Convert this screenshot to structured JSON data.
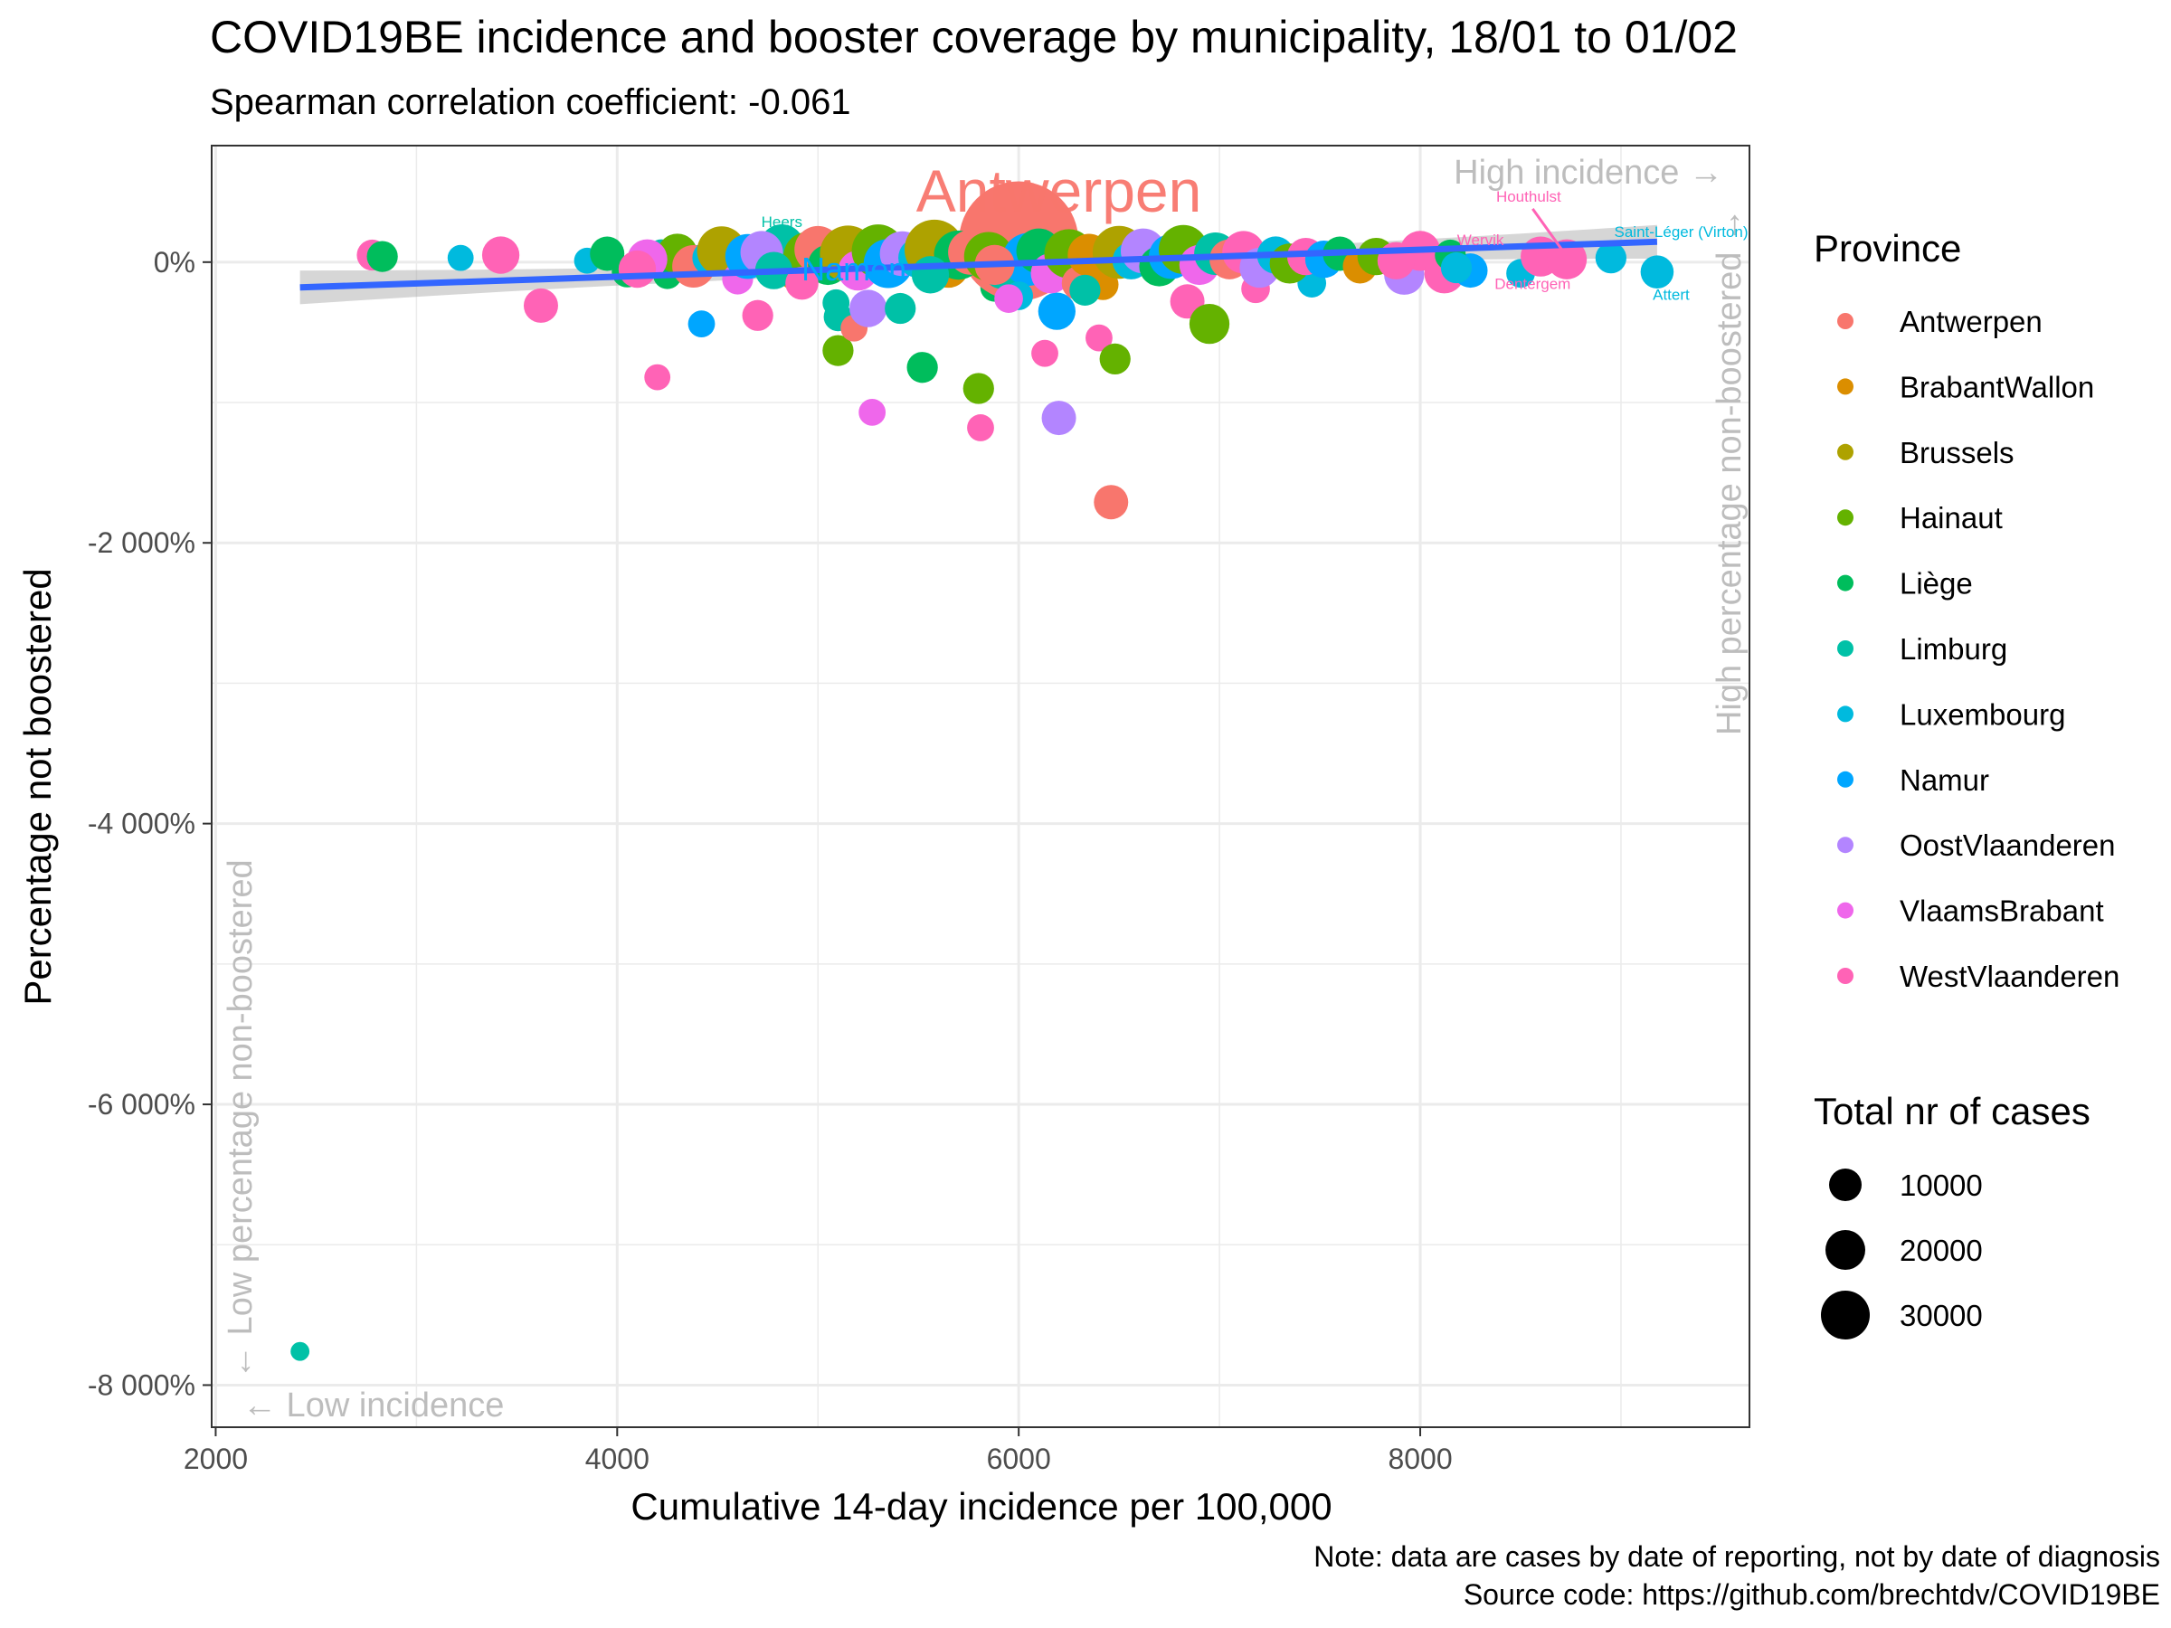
{
  "title": "COVID19BE incidence and booster coverage by municipality, 18/01 to 01/02",
  "subtitle": "Spearman correlation coefficient: -0.061",
  "caption": {
    "line1": "Note: data are cases by date of reporting, not by date of diagnosis",
    "line2": "Source code: https://github.com/brechtdv/COVID19BE"
  },
  "annotations": {
    "high_incidence": "High incidence →",
    "low_incidence": "← Low incidence",
    "high_nonboost": "High percentage non-boostered →",
    "low_nonboost": "← Low percentage non-boostered"
  },
  "colors": {
    "Antwerpen": "#F8766D",
    "BrabantWallon": "#DB8E00",
    "Brussels": "#AEA200",
    "Hainaut": "#64B200",
    "Liège": "#00BD5C",
    "Limburg": "#00C1A7",
    "Luxembourg": "#00BADE",
    "Namur": "#00A6FF",
    "OostVlaanderen": "#B385FF",
    "VlaamsBrabant": "#EF67EB",
    "WestVlaanderen": "#FF63B6",
    "trend": "#3366FF"
  },
  "chart_data": {
    "type": "scatter",
    "xlabel": "Cumulative 14-day incidence per 100,000",
    "ylabel": "Percentage not boostered",
    "xlim": [
      1980,
      9640
    ],
    "ylim": [
      -8300,
      830
    ],
    "x_ticks": [
      2000,
      4000,
      6000,
      8000
    ],
    "y_ticks": [
      {
        "value": 0,
        "label": "0%"
      },
      {
        "value": -2000,
        "label": "-2 000%"
      },
      {
        "value": -4000,
        "label": "-4 000%"
      },
      {
        "value": -6000,
        "label": "-6 000%"
      },
      {
        "value": -8000,
        "label": "-8 000%"
      }
    ],
    "grid": true,
    "legend_position": "right",
    "legend": {
      "color_title": "Province",
      "size_title": "Total nr of cases",
      "provinces": [
        "Antwerpen",
        "BrabantWallon",
        "Brussels",
        "Hainaut",
        "Liège",
        "Limburg",
        "Luxembourg",
        "Namur",
        "OostVlaanderen",
        "VlaamsBrabant",
        "WestVlaanderen"
      ],
      "size_breaks": [
        10000,
        20000,
        30000
      ]
    },
    "trend_line": {
      "x1": 2420,
      "y1": -180,
      "x2": 9180,
      "y2": 145
    },
    "labels": [
      {
        "text": "Antwerpen",
        "x": 6200,
        "y": 360,
        "province": "Antwerpen",
        "size": "large"
      },
      {
        "text": "Namen",
        "x": 5180,
        "y": -130,
        "province": "Namur",
        "size": "medium"
      },
      {
        "text": "Heers",
        "x": 4820,
        "y": 250,
        "province": "Limburg",
        "size": "small"
      },
      {
        "text": "Houthulst",
        "x": 8540,
        "y": 430,
        "province": "WestVlaanderen",
        "size": "small"
      },
      {
        "text": "Wervik",
        "x": 8300,
        "y": 120,
        "province": "WestVlaanderen",
        "size": "small"
      },
      {
        "text": "Dentergem",
        "x": 8560,
        "y": -190,
        "province": "WestVlaanderen",
        "size": "small"
      },
      {
        "text": "Saint-Léger (Virton)",
        "x": 9300,
        "y": 180,
        "province": "Luxembourg",
        "size": "small"
      },
      {
        "text": "Attert",
        "x": 9250,
        "y": -270,
        "province": "Luxembourg",
        "size": "small"
      }
    ],
    "points": [
      {
        "x": 2420,
        "y": -7760,
        "province": "Limburg",
        "cases": 300
      },
      {
        "x": 2780,
        "y": 50,
        "province": "WestVlaanderen",
        "cases": 1500
      },
      {
        "x": 2830,
        "y": 40,
        "province": "Liège",
        "cases": 1500
      },
      {
        "x": 3220,
        "y": 30,
        "province": "Luxembourg",
        "cases": 900
      },
      {
        "x": 3420,
        "y": 50,
        "province": "WestVlaanderen",
        "cases": 2500
      },
      {
        "x": 3620,
        "y": -310,
        "province": "WestVlaanderen",
        "cases": 2000
      },
      {
        "x": 3850,
        "y": 10,
        "province": "Luxembourg",
        "cases": 900
      },
      {
        "x": 3950,
        "y": 60,
        "province": "Liège",
        "cases": 2000
      },
      {
        "x": 4050,
        "y": -70,
        "province": "Liège",
        "cases": 1500
      },
      {
        "x": 4200,
        "y": -820,
        "province": "WestVlaanderen",
        "cases": 900
      },
      {
        "x": 4220,
        "y": 60,
        "province": "Limburg",
        "cases": 1200
      },
      {
        "x": 4250,
        "y": -90,
        "province": "Liège",
        "cases": 1200
      },
      {
        "x": 4400,
        "y": 20,
        "province": "Luxembourg",
        "cases": 1200
      },
      {
        "x": 4420,
        "y": -440,
        "province": "Namur",
        "cases": 1000
      },
      {
        "x": 4700,
        "y": -380,
        "province": "WestVlaanderen",
        "cases": 1500
      },
      {
        "x": 4820,
        "y": 110,
        "province": "Limburg",
        "cases": 4000
      },
      {
        "x": 5090,
        "y": -290,
        "province": "Limburg",
        "cases": 1000
      },
      {
        "x": 5100,
        "y": -390,
        "province": "Limburg",
        "cases": 1200
      },
      {
        "x": 5100,
        "y": -630,
        "province": "Hainaut",
        "cases": 1500
      },
      {
        "x": 5180,
        "y": -470,
        "province": "Antwerpen",
        "cases": 1000
      },
      {
        "x": 5250,
        "y": -330,
        "province": "OostVlaanderen",
        "cases": 2500
      },
      {
        "x": 5270,
        "y": -1070,
        "province": "VlaamsBrabant",
        "cases": 1000
      },
      {
        "x": 5410,
        "y": -330,
        "province": "Limburg",
        "cases": 1500
      },
      {
        "x": 5520,
        "y": -750,
        "province": "Liège",
        "cases": 1500
      },
      {
        "x": 5800,
        "y": -900,
        "province": "Hainaut",
        "cases": 1500
      },
      {
        "x": 5810,
        "y": -1180,
        "province": "WestVlaanderen",
        "cases": 1000
      },
      {
        "x": 5880,
        "y": -180,
        "province": "Liège",
        "cases": 1200
      },
      {
        "x": 6000,
        "y": 150,
        "province": "Antwerpen",
        "cases": 38000
      },
      {
        "x": 6130,
        "y": -650,
        "province": "WestVlaanderen",
        "cases": 1000
      },
      {
        "x": 6190,
        "y": -350,
        "province": "Namur",
        "cases": 2500
      },
      {
        "x": 6200,
        "y": -1110,
        "province": "OostVlaanderen",
        "cases": 2000
      },
      {
        "x": 6400,
        "y": -540,
        "province": "WestVlaanderen",
        "cases": 1000
      },
      {
        "x": 6460,
        "y": -1710,
        "province": "Antwerpen",
        "cases": 2000
      },
      {
        "x": 6480,
        "y": -690,
        "province": "Hainaut",
        "cases": 1500
      },
      {
        "x": 6840,
        "y": -280,
        "province": "WestVlaanderen",
        "cases": 2000
      },
      {
        "x": 6950,
        "y": -440,
        "province": "Hainaut",
        "cases": 3000
      },
      {
        "x": 7180,
        "y": -190,
        "province": "WestVlaanderen",
        "cases": 1200
      },
      {
        "x": 7460,
        "y": -150,
        "province": "Luxembourg",
        "cases": 1200
      },
      {
        "x": 7920,
        "y": -90,
        "province": "OostVlaanderen",
        "cases": 3000
      },
      {
        "x": 8000,
        "y": 80,
        "province": "WestVlaanderen",
        "cases": 3000
      },
      {
        "x": 8120,
        "y": -80,
        "province": "WestVlaanderen",
        "cases": 3000
      },
      {
        "x": 8250,
        "y": -60,
        "province": "Namur",
        "cases": 2000
      },
      {
        "x": 8500,
        "y": -80,
        "province": "Luxembourg",
        "cases": 1200
      },
      {
        "x": 8600,
        "y": 40,
        "province": "WestVlaanderen",
        "cases": 3000
      },
      {
        "x": 8730,
        "y": 20,
        "province": "WestVlaanderen",
        "cases": 3000
      },
      {
        "x": 8950,
        "y": 30,
        "province": "Luxembourg",
        "cases": 1500
      },
      {
        "x": 9180,
        "y": -70,
        "province": "Luxembourg",
        "cases": 1800
      },
      {
        "x": 4300,
        "y": 60,
        "province": "Hainaut",
        "cases": 3000
      },
      {
        "x": 4380,
        "y": -30,
        "province": "Antwerpen",
        "cases": 3500
      },
      {
        "x": 4460,
        "y": 30,
        "province": "Luxembourg",
        "cases": 2000
      },
      {
        "x": 4520,
        "y": 80,
        "province": "Brussels",
        "cases": 5000
      },
      {
        "x": 4600,
        "y": -120,
        "province": "VlaamsBrabant",
        "cases": 1500
      },
      {
        "x": 4650,
        "y": 40,
        "province": "Namur",
        "cases": 4000
      },
      {
        "x": 4720,
        "y": 70,
        "province": "OostVlaanderen",
        "cases": 3500
      },
      {
        "x": 4900,
        "y": -80,
        "province": "BrabantWallon",
        "cases": 2500
      },
      {
        "x": 4950,
        "y": 40,
        "province": "Hainaut",
        "cases": 5000
      },
      {
        "x": 5000,
        "y": 90,
        "province": "Antwerpen",
        "cases": 4500
      },
      {
        "x": 5050,
        "y": -20,
        "province": "Liège",
        "cases": 3000
      },
      {
        "x": 5150,
        "y": 60,
        "province": "Brussels",
        "cases": 7000
      },
      {
        "x": 5200,
        "y": -60,
        "province": "VlaamsBrabant",
        "cases": 3000
      },
      {
        "x": 5300,
        "y": 80,
        "province": "Hainaut",
        "cases": 6000
      },
      {
        "x": 5350,
        "y": -10,
        "province": "Namur",
        "cases": 5000
      },
      {
        "x": 5420,
        "y": 60,
        "province": "OostVlaanderen",
        "cases": 4000
      },
      {
        "x": 5500,
        "y": 30,
        "province": "Luxembourg",
        "cases": 3000
      },
      {
        "x": 5580,
        "y": 90,
        "province": "Brussels",
        "cases": 8000
      },
      {
        "x": 5650,
        "y": -40,
        "province": "BrabantWallon",
        "cases": 3000
      },
      {
        "x": 5700,
        "y": 50,
        "province": "Liège",
        "cases": 5000
      },
      {
        "x": 5760,
        "y": 70,
        "province": "Antwerpen",
        "cases": 4000
      },
      {
        "x": 5850,
        "y": 40,
        "province": "Hainaut",
        "cases": 5000
      },
      {
        "x": 5920,
        "y": -50,
        "province": "Limburg",
        "cases": 3000
      },
      {
        "x": 6050,
        "y": 20,
        "province": "Namur",
        "cases": 6000
      },
      {
        "x": 6100,
        "y": 80,
        "province": "Liège",
        "cases": 4000
      },
      {
        "x": 6160,
        "y": -80,
        "province": "VlaamsBrabant",
        "cases": 3000
      },
      {
        "x": 6250,
        "y": 60,
        "province": "Hainaut",
        "cases": 5000
      },
      {
        "x": 6300,
        "y": -150,
        "province": "Antwerpen",
        "cases": 2000
      },
      {
        "x": 6350,
        "y": 50,
        "province": "BrabantWallon",
        "cases": 3500
      },
      {
        "x": 6420,
        "y": -160,
        "province": "BrabantWallon",
        "cases": 1500
      },
      {
        "x": 6500,
        "y": 70,
        "province": "Brussels",
        "cases": 6000
      },
      {
        "x": 6560,
        "y": 10,
        "province": "Luxembourg",
        "cases": 2500
      },
      {
        "x": 6620,
        "y": 80,
        "province": "OostVlaanderen",
        "cases": 4000
      },
      {
        "x": 6700,
        "y": -30,
        "province": "Liège",
        "cases": 3000
      },
      {
        "x": 6760,
        "y": 40,
        "province": "Namur",
        "cases": 4000
      },
      {
        "x": 6820,
        "y": 90,
        "province": "Hainaut",
        "cases": 5000
      },
      {
        "x": 6900,
        "y": -20,
        "province": "VlaamsBrabant",
        "cases": 3000
      },
      {
        "x": 6980,
        "y": 60,
        "province": "Limburg",
        "cases": 3500
      },
      {
        "x": 7050,
        "y": 20,
        "province": "Antwerpen",
        "cases": 3000
      },
      {
        "x": 7120,
        "y": 70,
        "province": "WestVlaanderen",
        "cases": 3500
      },
      {
        "x": 7200,
        "y": -40,
        "province": "OostVlaanderen",
        "cases": 3000
      },
      {
        "x": 7280,
        "y": 50,
        "province": "Luxembourg",
        "cases": 2500
      },
      {
        "x": 7350,
        "y": -10,
        "province": "Hainaut",
        "cases": 3000
      },
      {
        "x": 7430,
        "y": 40,
        "province": "WestVlaanderen",
        "cases": 2500
      },
      {
        "x": 7520,
        "y": 20,
        "province": "Namur",
        "cases": 2500
      },
      {
        "x": 7600,
        "y": 60,
        "province": "Liège",
        "cases": 2000
      },
      {
        "x": 7700,
        "y": -30,
        "province": "BrabantWallon",
        "cases": 2000
      },
      {
        "x": 7780,
        "y": 40,
        "province": "Hainaut",
        "cases": 2500
      },
      {
        "x": 7880,
        "y": 10,
        "province": "WestVlaanderen",
        "cases": 2500
      },
      {
        "x": 8150,
        "y": 50,
        "province": "Liège",
        "cases": 1500
      },
      {
        "x": 8180,
        "y": -40,
        "province": "Luxembourg",
        "cases": 1500
      },
      {
        "x": 4150,
        "y": 20,
        "province": "VlaamsBrabant",
        "cases": 3000
      },
      {
        "x": 4100,
        "y": -50,
        "province": "WestVlaanderen",
        "cases": 2500
      },
      {
        "x": 4780,
        "y": -60,
        "province": "Limburg",
        "cases": 2500
      },
      {
        "x": 5560,
        "y": -90,
        "province": "Limburg",
        "cases": 2500
      },
      {
        "x": 6000,
        "y": -240,
        "province": "Luxembourg",
        "cases": 1200
      },
      {
        "x": 5950,
        "y": -260,
        "province": "VlaamsBrabant",
        "cases": 1200
      },
      {
        "x": 6330,
        "y": -200,
        "province": "Limburg",
        "cases": 1500
      },
      {
        "x": 5880,
        "y": -20,
        "province": "Antwerpen",
        "cases": 3000
      },
      {
        "x": 4920,
        "y": -150,
        "province": "WestVlaanderen",
        "cases": 1800
      }
    ]
  }
}
